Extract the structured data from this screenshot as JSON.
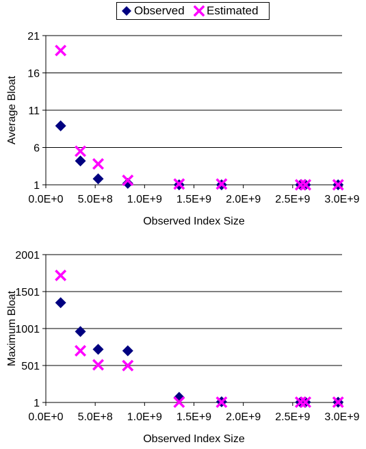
{
  "legend": {
    "observed": "Observed",
    "estimated": "Estimated",
    "observed_color": "#000080",
    "estimated_color": "#ff00ff"
  },
  "chart_data": [
    {
      "type": "scatter",
      "title": "",
      "xlabel": "Observed Index Size",
      "ylabel": "Average Bloat",
      "xlim": [
        0,
        3000000000
      ],
      "ylim": [
        1,
        21
      ],
      "x_ticks": [
        "0.0E+0",
        "5.0E+8",
        "1.0E+9",
        "1.5E+9",
        "2.0E+9",
        "2.5E+9",
        "3.0E+9"
      ],
      "y_ticks": [
        "1",
        "6",
        "11",
        "16",
        "21"
      ],
      "grid": "horizontal",
      "series": [
        {
          "name": "Observed",
          "marker": "diamond",
          "color": "#000080",
          "points": [
            [
              150000000,
              8.9
            ],
            [
              350000000,
              4.2
            ],
            [
              530000000,
              1.8
            ],
            [
              830000000,
              1.2
            ],
            [
              1350000000,
              1.0
            ],
            [
              1780000000,
              1.0
            ],
            [
              2580000000,
              1.0
            ],
            [
              2630000000,
              1.0
            ],
            [
              2960000000,
              1.0
            ]
          ]
        },
        {
          "name": "Estimated",
          "marker": "x",
          "color": "#ff00ff",
          "points": [
            [
              150000000,
              19.0
            ],
            [
              350000000,
              5.5
            ],
            [
              530000000,
              3.8
            ],
            [
              830000000,
              1.6
            ],
            [
              1350000000,
              1.1
            ],
            [
              1780000000,
              1.1
            ],
            [
              2580000000,
              1.0
            ],
            [
              2630000000,
              1.0
            ],
            [
              2960000000,
              1.0
            ]
          ]
        }
      ]
    },
    {
      "type": "scatter",
      "title": "",
      "xlabel": "Observed Index Size",
      "ylabel": "Maximum Bloat",
      "xlim": [
        0,
        3000000000
      ],
      "ylim": [
        1,
        2001
      ],
      "x_ticks": [
        "0.0E+0",
        "5.0E+8",
        "1.0E+9",
        "1.5E+9",
        "2.0E+9",
        "2.5E+9",
        "3.0E+9"
      ],
      "y_ticks": [
        "1",
        "501",
        "1001",
        "1501",
        "2001"
      ],
      "grid": "horizontal",
      "series": [
        {
          "name": "Observed",
          "marker": "diamond",
          "color": "#000080",
          "points": [
            [
              150000000,
              1350
            ],
            [
              350000000,
              960
            ],
            [
              530000000,
              720
            ],
            [
              830000000,
              700
            ],
            [
              1350000000,
              70
            ],
            [
              1780000000,
              10
            ],
            [
              2580000000,
              5
            ],
            [
              2630000000,
              5
            ],
            [
              2960000000,
              5
            ]
          ]
        },
        {
          "name": "Estimated",
          "marker": "x",
          "color": "#ff00ff",
          "points": [
            [
              150000000,
              1720
            ],
            [
              350000000,
              700
            ],
            [
              530000000,
              510
            ],
            [
              830000000,
              500
            ],
            [
              1350000000,
              5
            ],
            [
              1780000000,
              5
            ],
            [
              2580000000,
              5
            ],
            [
              2630000000,
              5
            ],
            [
              2960000000,
              5
            ]
          ]
        }
      ]
    }
  ]
}
